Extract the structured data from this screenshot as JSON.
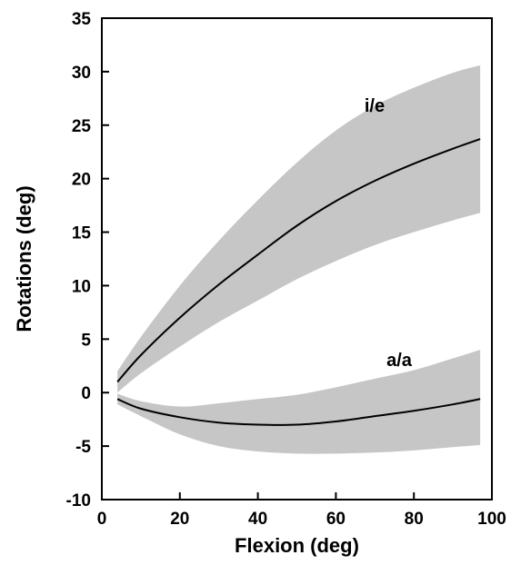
{
  "chart_data": {
    "type": "line",
    "title": "",
    "xlabel": "Flexion (deg)",
    "ylabel": "Rotations (deg)",
    "xlim": [
      0,
      100
    ],
    "ylim": [
      -10,
      35
    ],
    "xticks": [
      "0",
      "20",
      "40",
      "60",
      "80",
      "100"
    ],
    "yticks": [
      "-10",
      "-5",
      "0",
      "5",
      "10",
      "15",
      "20",
      "25",
      "30",
      "35"
    ],
    "grid": false,
    "colors": {
      "band": "#c6c6c6",
      "line": "#000000"
    },
    "series": [
      {
        "name": "i/e",
        "x": [
          4,
          10,
          20,
          30,
          40,
          50,
          60,
          70,
          80,
          90,
          97
        ],
        "mean": [
          1.0,
          3.5,
          7.0,
          10.1,
          12.9,
          15.6,
          17.9,
          19.8,
          21.4,
          22.8,
          23.7
        ],
        "upper": [
          2.0,
          5.2,
          10.0,
          14.2,
          18.0,
          21.5,
          24.5,
          26.8,
          28.5,
          29.9,
          30.6
        ],
        "lower": [
          0.0,
          1.8,
          4.3,
          6.6,
          8.6,
          10.6,
          12.3,
          13.8,
          15.0,
          16.1,
          16.8
        ]
      },
      {
        "name": "a/a",
        "x": [
          4,
          10,
          20,
          30,
          40,
          50,
          60,
          70,
          80,
          90,
          97
        ],
        "mean": [
          -0.6,
          -1.5,
          -2.3,
          -2.8,
          -3.0,
          -3.0,
          -2.7,
          -2.2,
          -1.7,
          -1.1,
          -0.6
        ],
        "upper": [
          -0.1,
          -0.8,
          -1.3,
          -1.0,
          -0.6,
          -0.2,
          0.5,
          1.3,
          2.1,
          3.2,
          4.0
        ],
        "lower": [
          -1.1,
          -2.2,
          -3.9,
          -5.0,
          -5.5,
          -5.7,
          -5.7,
          -5.6,
          -5.4,
          -5.1,
          -4.9
        ]
      }
    ]
  }
}
